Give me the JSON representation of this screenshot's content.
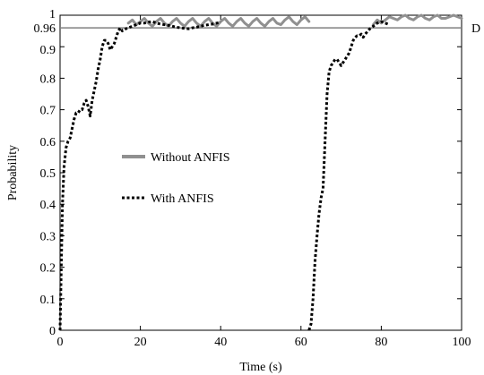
{
  "chart_data": {
    "type": "line",
    "title": "",
    "xlabel": "Time (s)",
    "ylabel": "Probability",
    "xlim": [
      0,
      100
    ],
    "ylim": [
      0,
      1
    ],
    "grid": false,
    "legend_placement": "center-left",
    "x_ticks": [
      0,
      20,
      40,
      60,
      80,
      100
    ],
    "y_ticks": [
      0,
      0.1,
      0.2,
      0.3,
      0.4,
      0.5,
      0.6,
      0.7,
      0.8,
      0.9,
      1
    ],
    "y_tick_labels": [
      "0",
      "0.1",
      "0.2",
      "0.3",
      "0.4",
      "0.5",
      "0.6",
      "0.7",
      "0.8",
      "0.9",
      "1"
    ],
    "reference_line": {
      "y": 0.96,
      "value_label": "0.96",
      "label": "D",
      "color": "#808080"
    },
    "series": [
      {
        "name": "Without ANFIS",
        "color": "#909090",
        "style": "solid",
        "segments": [
          {
            "x": [
              17,
              18,
              19,
              20,
              21,
              22,
              23,
              24,
              25,
              26,
              27,
              28,
              29,
              30,
              31,
              32,
              33,
              34,
              35,
              36,
              37,
              38,
              39,
              40,
              41,
              42,
              43,
              44,
              45,
              46,
              47,
              48,
              49,
              50,
              51,
              52,
              53,
              54,
              55,
              56,
              57,
              58,
              59,
              60,
              61,
              62
            ],
            "y": [
              0.975,
              0.985,
              0.97,
              0.98,
              0.99,
              0.975,
              0.965,
              0.98,
              0.99,
              0.975,
              0.965,
              0.98,
              0.99,
              0.975,
              0.965,
              0.98,
              0.99,
              0.975,
              0.965,
              0.98,
              0.99,
              0.975,
              0.965,
              0.98,
              0.99,
              0.975,
              0.965,
              0.98,
              0.99,
              0.975,
              0.965,
              0.98,
              0.99,
              0.975,
              0.965,
              0.98,
              0.99,
              0.975,
              0.97,
              0.985,
              0.995,
              0.98,
              0.97,
              0.985,
              0.995,
              0.98
            ]
          },
          {
            "x": [
              78,
              79,
              80,
              81,
              82,
              83,
              84,
              85,
              86,
              87,
              88,
              89,
              90,
              91,
              92,
              93,
              94,
              95,
              96,
              97,
              98,
              99,
              100
            ],
            "y": [
              0.97,
              0.985,
              0.975,
              0.985,
              0.995,
              0.99,
              0.985,
              0.995,
              1.0,
              0.99,
              0.985,
              0.995,
              1.0,
              0.99,
              0.985,
              0.995,
              1.0,
              0.99,
              0.99,
              0.995,
              1.0,
              0.995,
              0.99
            ]
          }
        ]
      },
      {
        "name": "With ANFIS",
        "color": "#000000",
        "style": "dotted",
        "segments": [
          {
            "x": [
              0,
              0.3,
              0.6,
              1,
              1.5,
              2,
              2.5,
              3,
              3.5,
              4,
              4.5,
              5,
              5.5,
              6,
              6.5,
              7,
              7.5,
              8,
              8.5,
              9,
              9.5,
              10,
              10.5,
              11,
              11.5,
              12,
              12.5,
              13,
              13.5,
              14,
              14.5,
              15,
              15.5,
              16,
              17,
              18,
              19,
              20,
              21,
              22,
              23,
              24,
              25,
              26,
              27,
              28,
              29,
              30,
              31,
              32,
              33,
              34,
              35,
              36,
              37,
              38,
              39,
              40
            ],
            "y": [
              0,
              0.2,
              0.4,
              0.52,
              0.58,
              0.6,
              0.61,
              0.64,
              0.67,
              0.69,
              0.69,
              0.7,
              0.7,
              0.72,
              0.73,
              0.71,
              0.68,
              0.73,
              0.76,
              0.79,
              0.83,
              0.86,
              0.9,
              0.92,
              0.92,
              0.91,
              0.89,
              0.9,
              0.91,
              0.93,
              0.95,
              0.96,
              0.95,
              0.955,
              0.96,
              0.965,
              0.97,
              0.975,
              0.975,
              0.978,
              0.98,
              0.975,
              0.972,
              0.97,
              0.968,
              0.965,
              0.962,
              0.96,
              0.958,
              0.957,
              0.96,
              0.962,
              0.965,
              0.968,
              0.97,
              0.972,
              0.975,
              0.977
            ]
          },
          {
            "x": [
              62,
              62.5,
              63,
              63.5,
              64,
              64.5,
              65,
              65.5,
              66,
              66.5,
              67,
              67.5,
              68,
              68.5,
              69,
              69.5,
              70,
              70.5,
              71,
              71.5,
              72,
              72.5,
              73,
              73.5,
              74,
              74.5,
              75,
              75.5,
              76,
              77,
              78,
              79,
              80,
              81,
              82
            ],
            "y": [
              0,
              0.02,
              0.1,
              0.22,
              0.3,
              0.37,
              0.42,
              0.45,
              0.6,
              0.75,
              0.82,
              0.84,
              0.85,
              0.86,
              0.86,
              0.85,
              0.84,
              0.85,
              0.86,
              0.87,
              0.88,
              0.9,
              0.92,
              0.93,
              0.935,
              0.935,
              0.94,
              0.93,
              0.94,
              0.955,
              0.965,
              0.975,
              0.98,
              0.975,
              0.97
            ]
          }
        ]
      }
    ]
  }
}
